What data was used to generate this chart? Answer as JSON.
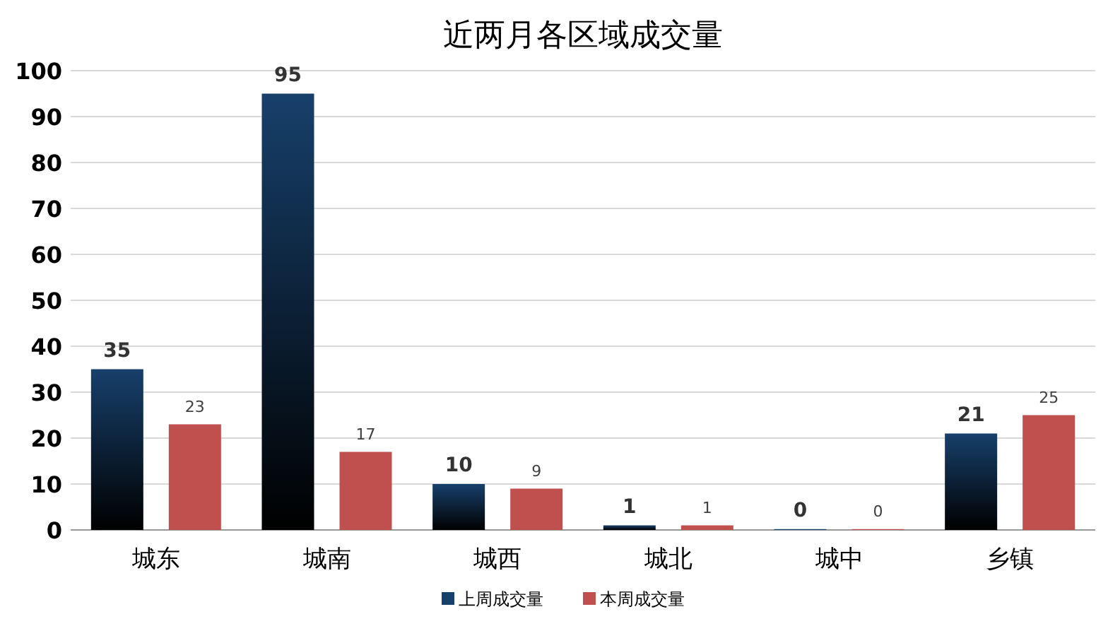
{
  "chart_data": {
    "type": "bar",
    "title": "近两月各区域成交量",
    "categories": [
      "城东",
      "城南",
      "城西",
      "城北",
      "城中",
      "乡镇"
    ],
    "series": [
      {
        "name": "上周成交量",
        "color": "#17406b",
        "values": [
          35,
          95,
          10,
          1,
          0,
          21
        ]
      },
      {
        "name": "本周成交量",
        "color": "#c0504d",
        "values": [
          23,
          17,
          9,
          1,
          0,
          25
        ]
      }
    ],
    "ylim": [
      0,
      100
    ],
    "yticks": [
      0,
      10,
      20,
      30,
      40,
      50,
      60,
      70,
      80,
      90,
      100
    ],
    "grid": "y",
    "legend": "bottom",
    "data_labels": true
  }
}
